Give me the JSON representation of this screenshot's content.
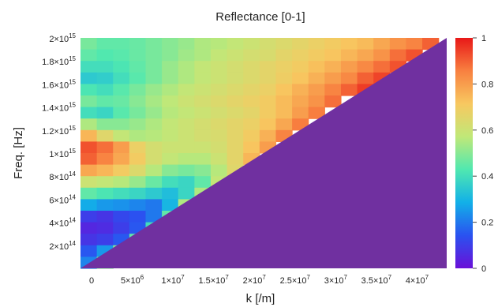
{
  "chart_data": {
    "type": "heatmap",
    "title": "Reflectance [0-1]",
    "xlabel": "k [/m]",
    "ylabel": "Freq. [Hz]",
    "xlim": [
      0,
      45000000
    ],
    "ylim": [
      0,
      2000000000000000
    ],
    "grid": false,
    "colormap": "rainbow",
    "colorscale": {
      "min": 0,
      "max": 1,
      "ticks": [
        "1",
        "0.8",
        "0.6",
        "0.4",
        "0.2",
        "0"
      ],
      "stops": [
        "#6a10d8",
        "#2a52f0",
        "#12b0e8",
        "#50e8b0",
        "#c0e878",
        "#f8c860",
        "#f88040",
        "#e81818"
      ]
    },
    "masked_region_color": "#7030a0",
    "masked_region": "below light line, f = c·k / 2π",
    "x_ticks": [
      {
        "value": 0,
        "base": "0",
        "exp": ""
      },
      {
        "value": 5000000,
        "base": "5×10",
        "exp": "6"
      },
      {
        "value": 10000000,
        "base": "1×10",
        "exp": "7"
      },
      {
        "value": 15000000,
        "base": "1.5×10",
        "exp": "7"
      },
      {
        "value": 20000000,
        "base": "2×10",
        "exp": "7"
      },
      {
        "value": 25000000,
        "base": "2.5×10",
        "exp": "7"
      },
      {
        "value": 30000000,
        "base": "3×10",
        "exp": "7"
      },
      {
        "value": 35000000,
        "base": "3.5×10",
        "exp": "7"
      },
      {
        "value": 40000000,
        "base": "4×10",
        "exp": "7"
      }
    ],
    "y_ticks": [
      {
        "value": 2000000000000000,
        "base": "2×10",
        "exp": "15"
      },
      {
        "value": 1800000000000000,
        "base": "1.8×10",
        "exp": "15"
      },
      {
        "value": 1600000000000000,
        "base": "1.6×10",
        "exp": "15"
      },
      {
        "value": 1400000000000000,
        "base": "1.4×10",
        "exp": "15"
      },
      {
        "value": 1200000000000000,
        "base": "1.2×10",
        "exp": "15"
      },
      {
        "value": 1000000000000000,
        "base": "1×10",
        "exp": "15"
      },
      {
        "value": 800000000000000,
        "base": "8×10",
        "exp": "14"
      },
      {
        "value": 600000000000000,
        "base": "6×10",
        "exp": "14"
      },
      {
        "value": 400000000000000,
        "base": "4×10",
        "exp": "14"
      },
      {
        "value": 200000000000000,
        "base": "2×10",
        "exp": "14"
      }
    ],
    "x_bins": [
      0,
      2000000,
      4000000,
      6000000,
      8000000,
      10000000,
      12000000,
      14000000,
      16000000,
      18000000,
      20000000,
      22000000,
      24000000,
      26000000,
      28000000,
      30000000,
      32000000,
      34000000,
      36000000,
      38000000,
      40000000,
      42000000
    ],
    "y_bins": [
      2000000000000000,
      1900000000000000,
      1800000000000000,
      1700000000000000,
      1600000000000000,
      1500000000000000,
      1400000000000000,
      1300000000000000,
      1200000000000000,
      1100000000000000,
      1000000000000000,
      900000000000000,
      800000000000000,
      700000000000000,
      600000000000000,
      500000000000000,
      400000000000000,
      300000000000000,
      200000000000000,
      100000000000000
    ],
    "values": [
      [
        0.48,
        0.45,
        0.45,
        0.46,
        0.48,
        0.5,
        0.52,
        0.55,
        0.56,
        0.58,
        0.6,
        0.62,
        0.64,
        0.66,
        0.68,
        0.7,
        0.72,
        0.74,
        0.78,
        0.82,
        0.85,
        0.9
      ],
      [
        0.45,
        0.43,
        0.44,
        0.46,
        0.48,
        0.5,
        0.53,
        0.55,
        0.58,
        0.6,
        0.62,
        0.63,
        0.66,
        0.68,
        0.7,
        0.72,
        0.75,
        0.78,
        0.82,
        0.88,
        0.92,
        null
      ],
      [
        0.4,
        0.4,
        0.42,
        0.45,
        0.48,
        0.52,
        0.55,
        0.58,
        0.6,
        0.62,
        0.64,
        0.66,
        0.68,
        0.7,
        0.73,
        0.76,
        0.8,
        0.84,
        0.88,
        0.92,
        null,
        null
      ],
      [
        0.35,
        0.36,
        0.4,
        0.44,
        0.48,
        0.52,
        0.55,
        0.58,
        0.6,
        0.62,
        0.64,
        0.66,
        0.69,
        0.72,
        0.76,
        0.8,
        0.84,
        0.9,
        0.94,
        null,
        null,
        null
      ],
      [
        0.42,
        0.4,
        0.44,
        0.48,
        0.52,
        0.55,
        0.58,
        0.6,
        0.62,
        0.64,
        0.66,
        0.68,
        0.72,
        0.76,
        0.8,
        0.85,
        0.9,
        0.95,
        null,
        null,
        null,
        null
      ],
      [
        0.48,
        0.45,
        0.46,
        0.5,
        0.54,
        0.57,
        0.6,
        0.62,
        0.64,
        0.66,
        0.68,
        0.7,
        0.74,
        0.78,
        0.82,
        0.88,
        null,
        null,
        null,
        null,
        null,
        null
      ],
      [
        0.4,
        0.38,
        0.44,
        0.48,
        0.52,
        0.56,
        0.58,
        0.6,
        0.62,
        0.64,
        0.66,
        0.7,
        0.74,
        0.8,
        0.86,
        null,
        null,
        null,
        null,
        null,
        null,
        null
      ],
      [
        0.55,
        0.5,
        0.5,
        0.52,
        0.55,
        0.58,
        0.6,
        0.62,
        0.64,
        0.66,
        0.68,
        0.72,
        0.78,
        0.86,
        null,
        null,
        null,
        null,
        null,
        null,
        null,
        null
      ],
      [
        0.75,
        0.65,
        0.58,
        0.55,
        0.56,
        0.58,
        0.6,
        0.62,
        0.63,
        0.66,
        0.7,
        0.76,
        0.85,
        null,
        null,
        null,
        null,
        null,
        null,
        null,
        null,
        null
      ],
      [
        0.92,
        0.88,
        0.8,
        0.68,
        0.62,
        0.6,
        0.6,
        0.6,
        0.62,
        0.66,
        0.72,
        0.8,
        null,
        null,
        null,
        null,
        null,
        null,
        null,
        null,
        null,
        null
      ],
      [
        0.9,
        0.85,
        0.78,
        0.7,
        0.62,
        0.58,
        0.56,
        0.56,
        0.6,
        0.66,
        0.75,
        null,
        null,
        null,
        null,
        null,
        null,
        null,
        null,
        null,
        null,
        null
      ],
      [
        0.78,
        0.75,
        0.7,
        0.64,
        0.56,
        0.5,
        0.48,
        0.5,
        0.56,
        0.65,
        null,
        null,
        null,
        null,
        null,
        null,
        null,
        null,
        null,
        null,
        null,
        null
      ],
      [
        0.6,
        0.58,
        0.56,
        0.52,
        0.46,
        0.4,
        0.38,
        0.45,
        0.58,
        null,
        null,
        null,
        null,
        null,
        null,
        null,
        null,
        null,
        null,
        null,
        null,
        null
      ],
      [
        0.45,
        0.42,
        0.4,
        0.38,
        0.35,
        0.32,
        0.38,
        0.55,
        null,
        null,
        null,
        null,
        null,
        null,
        null,
        null,
        null,
        null,
        null,
        null,
        null,
        null
      ],
      [
        0.28,
        0.25,
        0.24,
        0.22,
        0.2,
        0.3,
        0.55,
        null,
        null,
        null,
        null,
        null,
        null,
        null,
        null,
        null,
        null,
        null,
        null,
        null,
        null,
        null
      ],
      [
        0.1,
        0.08,
        0.12,
        0.14,
        0.2,
        0.45,
        null,
        null,
        null,
        null,
        null,
        null,
        null,
        null,
        null,
        null,
        null,
        null,
        null,
        null,
        null,
        null
      ],
      [
        0.05,
        0.06,
        0.1,
        0.15,
        0.4,
        null,
        null,
        null,
        null,
        null,
        null,
        null,
        null,
        null,
        null,
        null,
        null,
        null,
        null,
        null,
        null,
        null
      ],
      [
        0.08,
        0.1,
        0.15,
        0.45,
        null,
        null,
        null,
        null,
        null,
        null,
        null,
        null,
        null,
        null,
        null,
        null,
        null,
        null,
        null,
        null,
        null,
        null
      ],
      [
        0.15,
        0.25,
        0.5,
        null,
        null,
        null,
        null,
        null,
        null,
        null,
        null,
        null,
        null,
        null,
        null,
        null,
        null,
        null,
        null,
        null,
        null,
        null
      ],
      [
        0.22,
        0.5,
        null,
        null,
        null,
        null,
        null,
        null,
        null,
        null,
        null,
        null,
        null,
        null,
        null,
        null,
        null,
        null,
        null,
        null,
        null,
        null
      ]
    ]
  }
}
